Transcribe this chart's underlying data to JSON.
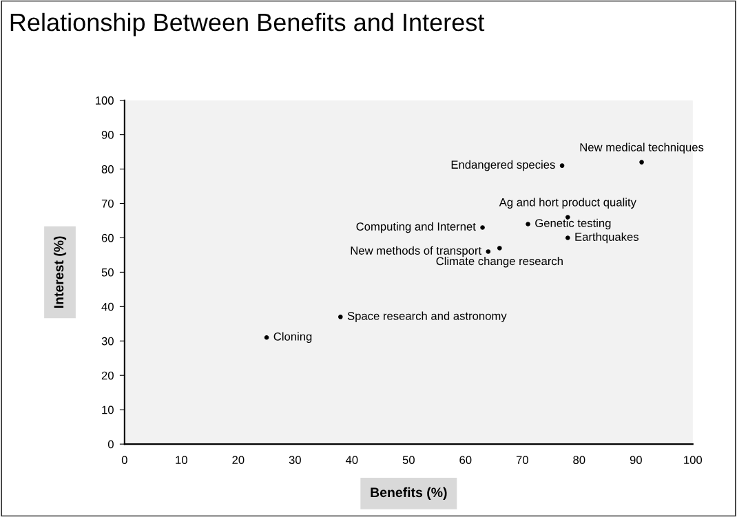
{
  "chart_data": {
    "type": "scatter",
    "title": "Relationship Between Benefits and Interest",
    "xlabel": "Benefits (%)",
    "ylabel": "Interest (%)",
    "series": [
      {
        "color": "#000000",
        "x": [
          25,
          38,
          63,
          71,
          78,
          78,
          64,
          66,
          77,
          91
        ],
        "values": [
          31,
          37,
          63,
          64,
          66,
          60,
          56,
          57,
          81,
          82
        ]
      }
    ],
    "annotations": [
      {
        "text": "Cloning",
        "x": 25,
        "y": 31
      },
      {
        "text": "Space research and astronomy",
        "x": 38,
        "y": 37
      },
      {
        "text": "Computing and Internet",
        "x": 63,
        "y": 63
      },
      {
        "text": "Genetic testing",
        "x": 71,
        "y": 64
      },
      {
        "text": "Ag and hort product quality",
        "x": 78,
        "y": 66
      },
      {
        "text": "Earthquakes",
        "x": 78,
        "y": 60
      },
      {
        "text": "New methods of transport",
        "x": 64,
        "y": 56
      },
      {
        "text": "Climate change research",
        "x": 66,
        "y": 57
      },
      {
        "text": "Endangered species",
        "x": 77,
        "y": 81
      },
      {
        "text": "New medical techniques",
        "x": 91,
        "y": 82
      }
    ],
    "xlim": [
      0,
      100
    ],
    "ylim": [
      0,
      100
    ],
    "xticks": [
      0,
      10,
      20,
      30,
      40,
      50,
      60,
      70,
      80,
      90,
      100
    ],
    "yticks": [
      0,
      10,
      20,
      30,
      40,
      50,
      60,
      70,
      80,
      90,
      100
    ],
    "grid": false,
    "legend": false,
    "marker": "circle"
  }
}
